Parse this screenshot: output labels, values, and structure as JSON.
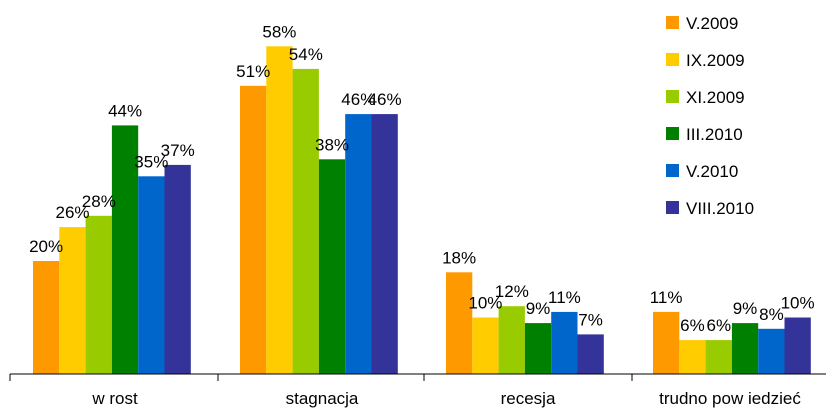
{
  "chart_data": {
    "type": "bar",
    "categories": [
      "w rost",
      "stagnacja",
      "recesja",
      "trudno pow iedzieć"
    ],
    "series": [
      {
        "name": "V.2009",
        "color": "#FF9900",
        "values": [
          20,
          51,
          18,
          11
        ],
        "labels": [
          "20%",
          "51%",
          "18%",
          "11%"
        ]
      },
      {
        "name": "IX.2009",
        "color": "#FFCC00",
        "values": [
          26,
          58,
          10,
          6
        ],
        "labels": [
          "26%",
          "58%",
          "10%",
          "6%"
        ]
      },
      {
        "name": "XI.2009",
        "color": "#99CC00",
        "values": [
          28,
          54,
          12,
          6
        ],
        "labels": [
          "28%",
          "54%",
          "12%",
          "6%"
        ]
      },
      {
        "name": "III.2010",
        "color": "#008000",
        "values": [
          44,
          38,
          9,
          9
        ],
        "labels": [
          "44%",
          "38%",
          "9%",
          "9%"
        ]
      },
      {
        "name": "V.2010",
        "color": "#0066CC",
        "values": [
          35,
          46,
          11,
          8
        ],
        "labels": [
          "35%",
          "46%",
          "11%",
          "8%"
        ]
      },
      {
        "name": "VIII.2010",
        "color": "#333399",
        "values": [
          37,
          46,
          7,
          10
        ],
        "labels": [
          "37%",
          "46%",
          "7%",
          "10%"
        ]
      }
    ],
    "legend_labels": [
      "V.2009",
      "IX.2009",
      "XI.2009",
      "III.2010",
      "V.2010",
      "VIII.2010"
    ],
    "ylim": [
      0,
      62
    ],
    "legend_position": "top-right",
    "grid": false
  }
}
